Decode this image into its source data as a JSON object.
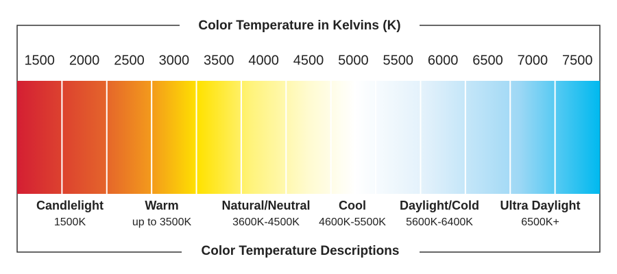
{
  "title": "Color Temperature in Kelvins (K)",
  "scale_labels": [
    1500,
    2000,
    2500,
    3000,
    3500,
    4000,
    4500,
    5000,
    5500,
    6000,
    6500,
    7000,
    7500
  ],
  "descriptions": [
    {
      "name": "Candlelight",
      "range": "1500K"
    },
    {
      "name": "Warm",
      "range": "up to 3500K"
    },
    {
      "name": "Natural/Neutral",
      "range": "3600K-4500K"
    },
    {
      "name": "Cool",
      "range": "4600K-5500K"
    },
    {
      "name": "Daylight/Cold",
      "range": "5600K-6400K"
    },
    {
      "name": "Ultra Daylight",
      "range": "6500K+"
    }
  ],
  "footer_title": "Color Temperature Descriptions"
}
